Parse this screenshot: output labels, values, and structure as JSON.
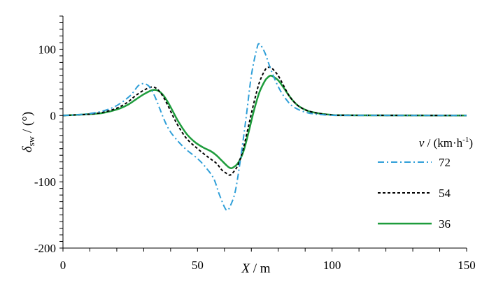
{
  "chart_data": {
    "type": "line",
    "xlabel": {
      "symbol": "X",
      "sep": " / ",
      "unit": "m"
    },
    "ylabel": {
      "symbol": "δ",
      "sub": "sw",
      "sep": " / ",
      "unit": "(°)"
    },
    "xlim": [
      0,
      150
    ],
    "ylim": [
      -200,
      150
    ],
    "xticks": [
      0,
      50,
      100,
      150
    ],
    "yticks": [
      -200,
      -100,
      0,
      100
    ],
    "grid": false,
    "legend": {
      "title": {
        "symbol": "v",
        "sep": " / ",
        "unit_pre": "(km·h",
        "unit_sup": "-1",
        "unit_post": ")"
      },
      "placement": "right"
    },
    "series": [
      {
        "name": "72",
        "color": "#2f9fd8",
        "dash": "dash-dot",
        "points": [
          [
            0,
            0
          ],
          [
            5,
            1
          ],
          [
            10,
            3
          ],
          [
            15,
            7
          ],
          [
            20,
            15
          ],
          [
            25,
            30
          ],
          [
            28,
            45
          ],
          [
            30,
            48
          ],
          [
            32,
            44
          ],
          [
            34,
            30
          ],
          [
            36,
            10
          ],
          [
            38,
            -10
          ],
          [
            40,
            -25
          ],
          [
            43,
            -40
          ],
          [
            46,
            -52
          ],
          [
            50,
            -65
          ],
          [
            53,
            -78
          ],
          [
            56,
            -95
          ],
          [
            58,
            -118
          ],
          [
            60,
            -138
          ],
          [
            61,
            -143
          ],
          [
            62,
            -138
          ],
          [
            64,
            -115
          ],
          [
            66,
            -65
          ],
          [
            68,
            -5
          ],
          [
            70,
            60
          ],
          [
            72,
            100
          ],
          [
            73,
            108
          ],
          [
            75,
            95
          ],
          [
            77,
            72
          ],
          [
            79,
            52
          ],
          [
            81,
            36
          ],
          [
            83,
            24
          ],
          [
            85,
            15
          ],
          [
            88,
            8
          ],
          [
            91,
            4
          ],
          [
            94,
            2
          ],
          [
            97,
            1
          ],
          [
            100,
            0.5
          ],
          [
            105,
            0.2
          ],
          [
            150,
            0
          ]
        ]
      },
      {
        "name": "54",
        "color": "#000000",
        "dash": "dashed",
        "points": [
          [
            0,
            0
          ],
          [
            5,
            1
          ],
          [
            10,
            2
          ],
          [
            15,
            5
          ],
          [
            20,
            11
          ],
          [
            24,
            20
          ],
          [
            27,
            30
          ],
          [
            30,
            38
          ],
          [
            33,
            43
          ],
          [
            35,
            40
          ],
          [
            37,
            30
          ],
          [
            39,
            15
          ],
          [
            41,
            -2
          ],
          [
            43,
            -17
          ],
          [
            46,
            -35
          ],
          [
            50,
            -50
          ],
          [
            54,
            -63
          ],
          [
            57,
            -72
          ],
          [
            59,
            -82
          ],
          [
            61,
            -88
          ],
          [
            62,
            -90
          ],
          [
            63,
            -87
          ],
          [
            65,
            -75
          ],
          [
            67,
            -50
          ],
          [
            69,
            -15
          ],
          [
            71,
            20
          ],
          [
            73,
            50
          ],
          [
            75,
            68
          ],
          [
            76,
            72
          ],
          [
            77,
            73
          ],
          [
            78,
            70
          ],
          [
            80,
            60
          ],
          [
            82,
            45
          ],
          [
            84,
            30
          ],
          [
            86,
            20
          ],
          [
            88,
            13
          ],
          [
            91,
            7
          ],
          [
            94,
            4
          ],
          [
            97,
            2
          ],
          [
            100,
            1
          ],
          [
            105,
            0.4
          ],
          [
            150,
            0
          ]
        ]
      },
      {
        "name": "36",
        "color": "#1e9c3c",
        "dash": "solid",
        "points": [
          [
            0,
            0
          ],
          [
            5,
            1
          ],
          [
            10,
            2
          ],
          [
            15,
            4
          ],
          [
            20,
            9
          ],
          [
            24,
            16
          ],
          [
            27,
            24
          ],
          [
            30,
            32
          ],
          [
            33,
            38
          ],
          [
            35,
            38
          ],
          [
            37,
            32
          ],
          [
            39,
            20
          ],
          [
            41,
            5
          ],
          [
            43,
            -10
          ],
          [
            46,
            -28
          ],
          [
            49,
            -40
          ],
          [
            52,
            -48
          ],
          [
            55,
            -54
          ],
          [
            57,
            -60
          ],
          [
            59,
            -68
          ],
          [
            61,
            -76
          ],
          [
            62,
            -79
          ],
          [
            63,
            -79
          ],
          [
            65,
            -72
          ],
          [
            67,
            -55
          ],
          [
            69,
            -25
          ],
          [
            71,
            8
          ],
          [
            73,
            35
          ],
          [
            75,
            52
          ],
          [
            76,
            57
          ],
          [
            77,
            60
          ],
          [
            78,
            59
          ],
          [
            80,
            53
          ],
          [
            82,
            42
          ],
          [
            84,
            30
          ],
          [
            86,
            20
          ],
          [
            88,
            13
          ],
          [
            91,
            7
          ],
          [
            94,
            4
          ],
          [
            97,
            2
          ],
          [
            100,
            1
          ],
          [
            105,
            0.4
          ],
          [
            150,
            0
          ]
        ]
      }
    ]
  }
}
